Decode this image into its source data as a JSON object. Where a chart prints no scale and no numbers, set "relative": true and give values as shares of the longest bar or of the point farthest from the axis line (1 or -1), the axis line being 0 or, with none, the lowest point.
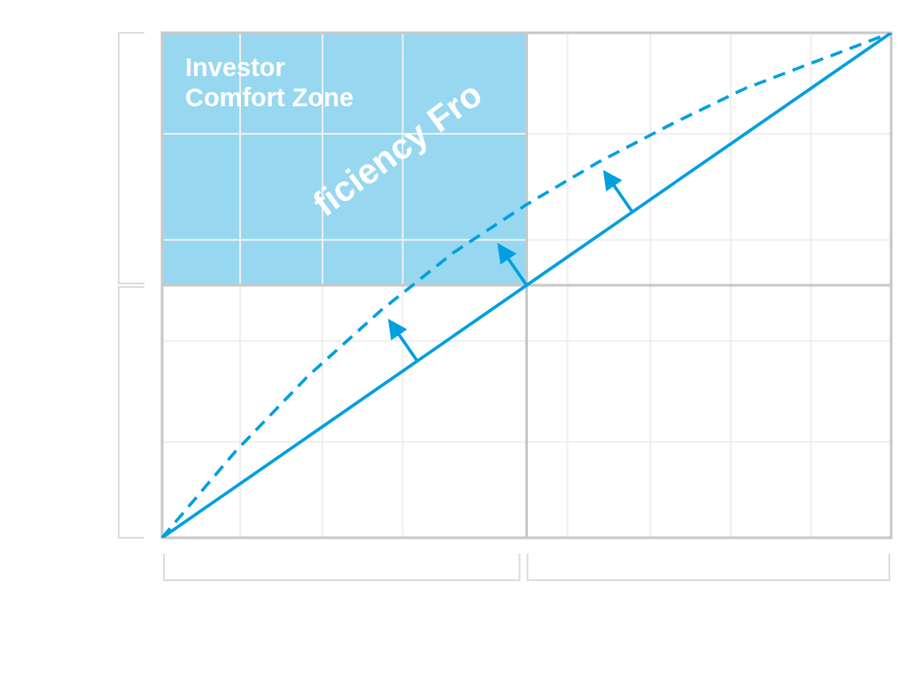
{
  "chart_data": {
    "type": "line",
    "relative": true,
    "categories": [
      null,
      null,
      null,
      null,
      null,
      null,
      null,
      null,
      null,
      null,
      null
    ],
    "grid": true,
    "legend": false,
    "marker": "none",
    "series": [
      {
        "color": "#009fdf",
        "line_style": "dashed",
        "values": [
          0,
          0.17,
          0.32,
          0.45,
          0.565,
          0.66,
          0.745,
          0.82,
          0.89,
          0.945,
          1
        ]
      },
      {
        "color": "#009fdf",
        "line_style": "solid",
        "values": [
          0,
          0.1,
          0.2,
          0.3,
          0.4,
          0.5,
          0.6,
          0.7,
          0.8,
          0.9,
          1
        ]
      }
    ],
    "annotations": [
      "Investor Comfort Zone",
      "ficiency Fro"
    ]
  }
}
